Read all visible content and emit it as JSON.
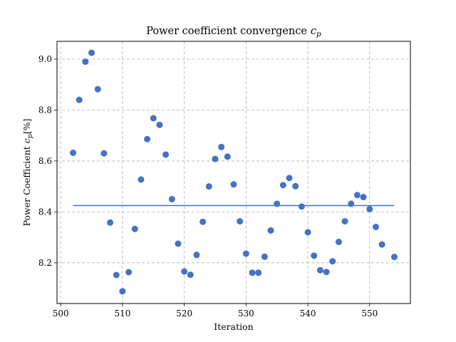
{
  "chart_data": {
    "type": "scatter",
    "title_main": "Power coefficient convergence",
    "title_symbol": "c",
    "title_subscript": "p",
    "xlabel": "Iteration",
    "ylabel_main": "Power Coefficient",
    "ylabel_symbol": "c",
    "ylabel_subscript": "p",
    "ylabel_unit": "[%]",
    "xlim": [
      499.4,
      556.6
    ],
    "ylim": [
      8.04,
      9.07
    ],
    "xticks": [
      500,
      510,
      520,
      530,
      540,
      550
    ],
    "xtick_labels": [
      "500",
      "510",
      "520",
      "530",
      "540",
      "550"
    ],
    "yticks": [
      8.2,
      8.4,
      8.6,
      8.8,
      9.0
    ],
    "ytick_labels": [
      "8.2",
      "8.4",
      "8.6",
      "8.8",
      "9.0"
    ],
    "grid": true,
    "point_color": "#4472c4",
    "line_color": "#4472c4",
    "mean_line": {
      "x": [
        502,
        554
      ],
      "y": 8.425
    },
    "x": [
      502,
      503,
      504,
      505,
      506,
      507,
      508,
      509,
      510,
      511,
      512,
      513,
      514,
      515,
      516,
      517,
      518,
      519,
      520,
      521,
      522,
      523,
      524,
      525,
      526,
      527,
      528,
      529,
      530,
      531,
      532,
      533,
      534,
      535,
      536,
      537,
      538,
      539,
      540,
      541,
      542,
      543,
      544,
      545,
      546,
      547,
      548,
      549,
      550,
      551,
      552,
      554
    ],
    "y": [
      8.632,
      8.84,
      8.99,
      9.025,
      8.882,
      8.63,
      8.358,
      8.152,
      8.088,
      8.163,
      8.333,
      8.527,
      8.686,
      8.768,
      8.742,
      8.625,
      8.45,
      8.275,
      8.166,
      8.153,
      8.231,
      8.361,
      8.5,
      8.608,
      8.655,
      8.617,
      8.508,
      8.363,
      8.236,
      8.161,
      8.161,
      8.224,
      8.327,
      8.432,
      8.505,
      8.533,
      8.501,
      8.421,
      8.32,
      8.228,
      8.171,
      8.164,
      8.206,
      8.282,
      8.363,
      8.432,
      8.466,
      8.458,
      8.411,
      8.341,
      8.272,
      8.223
    ]
  }
}
